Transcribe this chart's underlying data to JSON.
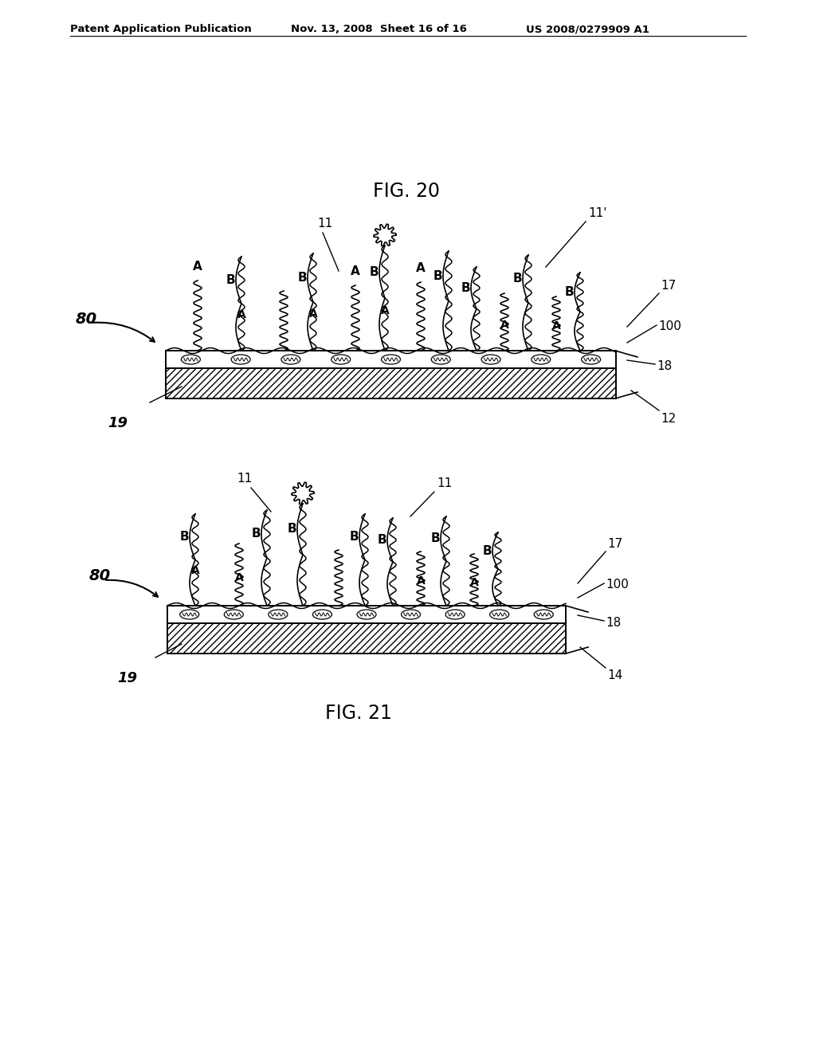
{
  "background_color": "#ffffff",
  "header_left": "Patent Application Publication",
  "header_mid": "Nov. 13, 2008  Sheet 16 of 16",
  "header_right": "US 2008/0279909 A1",
  "line_color": "#000000",
  "text_color": "#000000",
  "fig20_caption": "FIG. 20",
  "fig21_caption": "FIG. 21"
}
